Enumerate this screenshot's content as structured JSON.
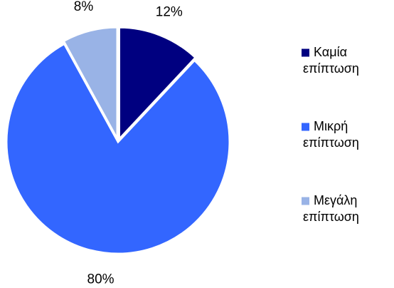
{
  "chart_data": {
    "type": "pie",
    "series": [
      {
        "values": [
          12,
          80,
          8
        ],
        "labels": [
          "12%",
          "80%",
          "8%"
        ]
      }
    ],
    "categories": [
      [
        "Καμία",
        "επίπτωση"
      ],
      [
        "Μικρή",
        "επίπτωση"
      ],
      [
        "Μεγάλη",
        "επίπτωση"
      ]
    ],
    "colors": [
      "#000080",
      "#3366ff",
      "#99b3e6"
    ],
    "start_angle_deg": 0,
    "direction": "clockwise",
    "exploded_slices": [
      0,
      2
    ],
    "legend_position": "right",
    "title": ""
  }
}
